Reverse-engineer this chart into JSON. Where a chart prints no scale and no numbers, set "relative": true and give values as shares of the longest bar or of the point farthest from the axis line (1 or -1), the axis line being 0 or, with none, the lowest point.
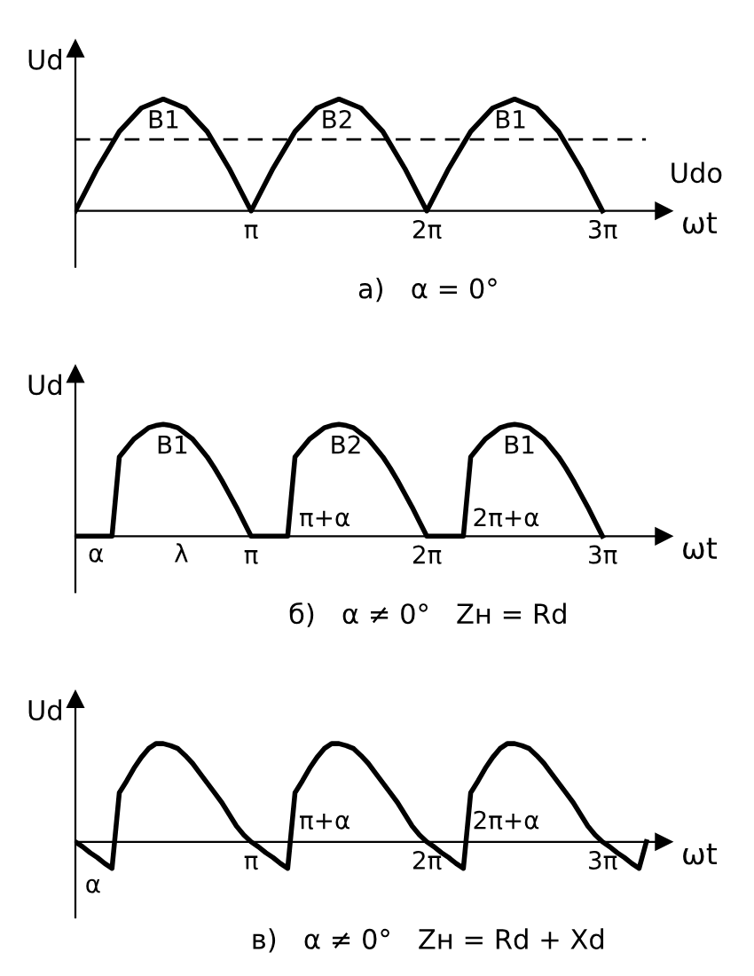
{
  "chart_data": [
    {
      "type": "line",
      "relative": true,
      "ylabel": "Ud",
      "xlabel": "ωt",
      "tick_labels": "x",
      "categories": [
        null,
        null,
        null,
        null,
        null,
        null,
        null,
        null,
        "π",
        null,
        null,
        null,
        null,
        null,
        null,
        null,
        "2π",
        null,
        null,
        null,
        null,
        null,
        null,
        null,
        "3π",
        null,
        null
      ],
      "series": [
        {
          "color": "#000000",
          "values": [
            0,
            0.38,
            0.71,
            0.92,
            1,
            0.92,
            0.71,
            0.38,
            0,
            0.38,
            0.71,
            0.92,
            1,
            0.92,
            0.71,
            0.38,
            0,
            0.38,
            0.71,
            0.92,
            1,
            0.92,
            0.71,
            0.38,
            0,
            null,
            null
          ]
        }
      ],
      "ref_lines": [
        {
          "axis": "y",
          "value": 0.64,
          "label": "Udo",
          "line_style": "dashed"
        }
      ],
      "annotations": [
        "B1",
        "B2",
        "B1",
        "а)   α = 0°"
      ]
    },
    {
      "type": "line",
      "relative": true,
      "ylabel": "Ud",
      "xlabel": "ωt",
      "tick_labels": "x",
      "categories": [
        null,
        null,
        null,
        null,
        null,
        null,
        null,
        null,
        null,
        null,
        null,
        null,
        null,
        null,
        null,
        null,
        null,
        null,
        null,
        null,
        null,
        null,
        null,
        null,
        "π",
        null,
        null,
        null,
        null,
        null,
        null,
        null,
        null,
        null,
        null,
        null,
        null,
        null,
        null,
        null,
        null,
        null,
        null,
        null,
        null,
        null,
        null,
        null,
        "2π",
        null,
        null,
        null,
        null,
        null,
        null,
        null,
        null,
        null,
        null,
        null,
        null,
        null,
        null,
        null,
        null,
        null,
        null,
        null,
        null,
        null,
        null,
        null,
        "3π",
        null,
        null,
        null,
        null,
        null,
        null
      ],
      "series": [
        {
          "color": "#000000",
          "values": [
            0,
            0,
            0,
            0,
            0,
            0,
            0.71,
            0.79,
            0.87,
            0.92,
            0.97,
            0.99,
            1,
            0.99,
            0.97,
            0.92,
            0.87,
            0.79,
            0.71,
            0.61,
            0.5,
            0.38,
            0.26,
            0.13,
            0,
            0,
            0,
            0,
            0,
            0,
            0.71,
            0.79,
            0.87,
            0.92,
            0.97,
            0.99,
            1,
            0.99,
            0.97,
            0.92,
            0.87,
            0.79,
            0.71,
            0.61,
            0.5,
            0.38,
            0.26,
            0.13,
            0,
            0,
            0,
            0,
            0,
            0,
            0.71,
            0.79,
            0.87,
            0.92,
            0.97,
            0.99,
            1,
            0.99,
            0.97,
            0.92,
            0.87,
            0.79,
            0.71,
            0.61,
            0.5,
            0.38,
            0.26,
            0.13,
            0,
            null,
            null,
            null,
            null,
            null,
            null
          ]
        }
      ],
      "annotations": [
        "B1",
        "B2",
        "B1",
        "π+α",
        "2π+α",
        "α",
        "λ",
        "б)   α ≠ 0°   Zн = Rd"
      ]
    },
    {
      "type": "line",
      "relative": true,
      "ylabel": "Ud",
      "xlabel": "ωt",
      "tick_labels": "x",
      "categories": [
        null,
        null,
        null,
        null,
        null,
        null,
        null,
        null,
        null,
        null,
        null,
        null,
        null,
        null,
        null,
        null,
        null,
        null,
        null,
        null,
        null,
        null,
        null,
        null,
        "π",
        null,
        null,
        null,
        null,
        null,
        null,
        null,
        null,
        null,
        null,
        null,
        null,
        null,
        null,
        null,
        null,
        null,
        null,
        null,
        null,
        null,
        null,
        null,
        "2π",
        null,
        null,
        null,
        null,
        null,
        null,
        null,
        null,
        null,
        null,
        null,
        null,
        null,
        null,
        null,
        null,
        null,
        null,
        null,
        null,
        null,
        null,
        null,
        "3π",
        null,
        null,
        null,
        null,
        null,
        null
      ],
      "series": [
        {
          "color": "#000000",
          "values": [
            0,
            -0.05,
            -0.11,
            -0.16,
            -0.22,
            -0.27,
            0.5,
            0.62,
            0.75,
            0.86,
            0.95,
            1,
            1,
            0.98,
            0.95,
            0.88,
            0.8,
            0.7,
            0.6,
            0.5,
            0.4,
            0.28,
            0.16,
            0.07,
            0,
            -0.05,
            -0.11,
            -0.16,
            -0.22,
            -0.27,
            0.5,
            0.62,
            0.75,
            0.86,
            0.95,
            1,
            1,
            0.98,
            0.95,
            0.88,
            0.8,
            0.7,
            0.6,
            0.5,
            0.4,
            0.28,
            0.16,
            0.07,
            0,
            -0.05,
            -0.11,
            -0.16,
            -0.22,
            -0.27,
            0.5,
            0.62,
            0.75,
            0.86,
            0.95,
            1,
            1,
            0.98,
            0.95,
            0.88,
            0.8,
            0.7,
            0.6,
            0.5,
            0.4,
            0.28,
            0.16,
            0.07,
            0,
            -0.05,
            -0.11,
            -0.16,
            -0.22,
            -0.27,
            0
          ]
        }
      ],
      "annotations": [
        "π+α",
        "2π+α",
        "α",
        "в)   α ≠ 0°   Zн = Rd + Xd"
      ]
    }
  ]
}
